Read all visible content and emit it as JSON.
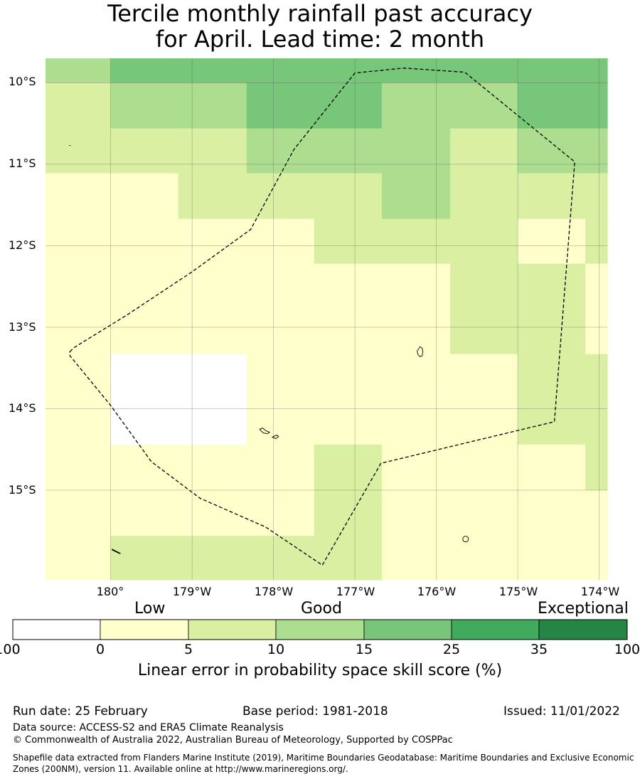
{
  "title": {
    "line1": "Tercile monthly rainfall past accuracy",
    "line2": "for April. Lead time: 2 month"
  },
  "map": {
    "lat_labels": [
      "10°S",
      "11°S",
      "12°S",
      "13°S",
      "14°S",
      "15°S"
    ],
    "lon_labels": [
      "180°",
      "179°W",
      "178°W",
      "177°W",
      "176°W",
      "175°W",
      "174°W"
    ],
    "extent": {
      "lon": [
        -180.8,
        -173.9
      ],
      "lat": [
        -16.1,
        -9.7
      ]
    },
    "grid_lon_edges": [
      -180.8,
      -180.0,
      -179.17,
      -178.33,
      -177.5,
      -176.67,
      -175.83,
      -175.0,
      -174.17,
      -173.9
    ],
    "grid_lat_edges": [
      -9.7,
      -10.0,
      -10.56,
      -11.11,
      -11.67,
      -12.22,
      -12.78,
      -13.33,
      -13.89,
      -14.44,
      -15.0,
      -15.56,
      -16.1
    ],
    "skill_class_grid": [
      [
        3,
        4,
        4,
        4,
        4,
        4,
        4,
        4,
        4
      ],
      [
        2,
        3,
        3,
        4,
        4,
        3,
        3,
        4,
        4
      ],
      [
        2,
        2,
        2,
        3,
        3,
        3,
        2,
        3,
        3
      ],
      [
        1,
        1,
        2,
        2,
        2,
        3,
        2,
        2,
        2
      ],
      [
        1,
        1,
        1,
        1,
        2,
        2,
        2,
        1,
        2
      ],
      [
        1,
        1,
        1,
        1,
        1,
        1,
        2,
        2,
        1
      ],
      [
        1,
        1,
        1,
        1,
        1,
        1,
        2,
        2,
        1
      ],
      [
        1,
        0,
        0,
        1,
        1,
        1,
        1,
        2,
        2
      ],
      [
        1,
        0,
        0,
        1,
        1,
        1,
        1,
        2,
        2
      ],
      [
        1,
        1,
        1,
        1,
        2,
        1,
        1,
        1,
        2
      ],
      [
        1,
        1,
        1,
        1,
        2,
        1,
        1,
        1,
        1
      ],
      [
        1,
        2,
        2,
        2,
        2,
        1,
        1,
        1,
        1
      ]
    ],
    "eez_boundary": [
      [
        -180.5,
        -13.3
      ],
      [
        -180.45,
        -13.25
      ],
      [
        -179.8,
        -12.85
      ],
      [
        -179.0,
        -12.32
      ],
      [
        -178.28,
        -11.8
      ],
      [
        -177.75,
        -10.82
      ],
      [
        -177.0,
        -9.88
      ],
      [
        -176.4,
        -9.82
      ],
      [
        -175.65,
        -9.87
      ],
      [
        -174.3,
        -10.97
      ],
      [
        -174.55,
        -14.16
      ],
      [
        -176.68,
        -14.67
      ],
      [
        -177.4,
        -15.92
      ],
      [
        -178.1,
        -15.45
      ],
      [
        -178.9,
        -15.1
      ],
      [
        -179.5,
        -14.65
      ],
      [
        -180.0,
        -13.96
      ],
      [
        -180.5,
        -13.35
      ]
    ],
    "islands": [
      {
        "name": "wallis-island",
        "lon": -176.2,
        "lat": -13.3
      },
      {
        "name": "futuna-island",
        "lon": -178.1,
        "lat": -14.28
      },
      {
        "name": "alofi-island",
        "lon": -177.98,
        "lat": -14.35
      },
      {
        "name": "niuafoou-island",
        "lon": -175.64,
        "lat": -15.6
      },
      {
        "name": "islet-north",
        "lon": -180.5,
        "lat": -10.77
      },
      {
        "name": "islet-south",
        "lon": -179.93,
        "lat": -15.75
      }
    ]
  },
  "colorbar": {
    "categories": [
      "Low",
      "Good",
      "Exceptional"
    ],
    "ticks": [
      "-100",
      "0",
      "5",
      "10",
      "15",
      "25",
      "35",
      "100"
    ],
    "colors": [
      "#ffffff",
      "#ffffcc",
      "#d9f0a3",
      "#addd8e",
      "#78c679",
      "#41ab5d",
      "#238443"
    ],
    "label": "Linear error in probability space skill score (%)"
  },
  "footer": {
    "run_date": "Run date: 25 February",
    "base_period": "Base period: 1981-2018",
    "issued": "Issued: 11/01/2022",
    "data_source": "Data source: ACCESS-S2 and ERA5 Climate Reanalysis",
    "copyright": "© Commonwealth of Australia 2022, Australian Bureau of Meteorology, Supported by COSPPac",
    "shapefile": "Shapefile data extracted from Flanders Marine Institute (2019), Maritime Boundaries Geodatabase: Maritime Boundaries and Exclusive Economic Zones (200NM), version 11. Available online at http://www.marineregions.org/."
  }
}
